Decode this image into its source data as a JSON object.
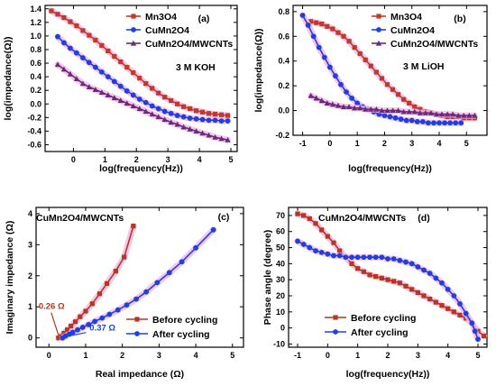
{
  "colors": {
    "mn3o4": "#c0392b",
    "cumn2o4": "#1f3fe0",
    "composite": "#6a2b7a",
    "before": "#b5371f",
    "after": "#1f3fe0",
    "halo": "#f3b8e8"
  },
  "chart_data": [
    {
      "type": "line",
      "panel": "(a)",
      "annotation": "3 M KOH",
      "xlabel": "log(frequency(Hz))",
      "ylabel": "log(impedance(Ω))",
      "xlim": [
        -0.9,
        5.2
      ],
      "ylim": [
        -0.7,
        1.45
      ],
      "xticks": [
        "0",
        "1",
        "2",
        "3",
        "4",
        "5"
      ],
      "yticks": [
        "-0.6",
        "-0.4",
        "-0.2",
        "0.0",
        "0.2",
        "0.4",
        "0.6",
        "0.8",
        "1.0",
        "1.2",
        "1.4"
      ],
      "legend": [
        "Mn3O4",
        "CuMn2O4",
        "CuMn2O4/MWCNTs"
      ],
      "series": [
        {
          "name": "Mn3O4",
          "marker": "square",
          "x": [
            -0.7,
            -0.5,
            -0.3,
            -0.1,
            0.1,
            0.3,
            0.5,
            0.7,
            0.9,
            1.1,
            1.3,
            1.5,
            1.7,
            1.9,
            2.1,
            2.3,
            2.5,
            2.7,
            2.9,
            3.1,
            3.3,
            3.5,
            3.7,
            3.9,
            4.1,
            4.3,
            4.5,
            4.7,
            4.9
          ],
          "y": [
            1.37,
            1.32,
            1.27,
            1.21,
            1.15,
            1.08,
            1.01,
            0.94,
            0.86,
            0.78,
            0.7,
            0.62,
            0.54,
            0.46,
            0.38,
            0.3,
            0.23,
            0.16,
            0.1,
            0.05,
            0.0,
            -0.04,
            -0.07,
            -0.1,
            -0.12,
            -0.14,
            -0.15,
            -0.16,
            -0.17
          ]
        },
        {
          "name": "CuMn2O4",
          "marker": "circle",
          "x": [
            -0.5,
            -0.3,
            -0.1,
            0.1,
            0.3,
            0.5,
            0.7,
            0.9,
            1.1,
            1.3,
            1.5,
            1.7,
            1.9,
            2.1,
            2.3,
            2.5,
            2.7,
            2.9,
            3.1,
            3.3,
            3.5,
            3.7,
            3.9,
            4.1,
            4.3,
            4.5,
            4.7,
            4.9
          ],
          "y": [
            0.99,
            0.9,
            0.82,
            0.75,
            0.68,
            0.61,
            0.54,
            0.47,
            0.4,
            0.33,
            0.26,
            0.19,
            0.13,
            0.07,
            0.02,
            -0.03,
            -0.07,
            -0.11,
            -0.14,
            -0.17,
            -0.19,
            -0.21,
            -0.22,
            -0.23,
            -0.24,
            -0.24,
            -0.25,
            -0.25
          ]
        },
        {
          "name": "CuMn2O4/MWCNTs",
          "marker": "triangle",
          "x": [
            -0.5,
            -0.3,
            -0.1,
            0.1,
            0.3,
            0.5,
            0.7,
            0.9,
            1.1,
            1.3,
            1.5,
            1.7,
            1.9,
            2.1,
            2.3,
            2.5,
            2.7,
            2.9,
            3.1,
            3.3,
            3.5,
            3.7,
            3.9,
            4.1,
            4.3,
            4.5,
            4.7,
            4.9
          ],
          "y": [
            0.58,
            0.51,
            0.44,
            0.37,
            0.3,
            0.25,
            0.21,
            0.17,
            0.13,
            0.09,
            0.05,
            0.01,
            -0.03,
            -0.07,
            -0.11,
            -0.15,
            -0.19,
            -0.23,
            -0.27,
            -0.3,
            -0.34,
            -0.37,
            -0.4,
            -0.43,
            -0.46,
            -0.49,
            -0.51,
            -0.53
          ]
        }
      ]
    },
    {
      "type": "line",
      "panel": "(b)",
      "annotation": "3 M LiOH",
      "xlabel": "log(frequency(Hz))",
      "ylabel": "log(impedance(Ω))",
      "xlim": [
        -1.35,
        5.75
      ],
      "ylim": [
        -0.2,
        0.85
      ],
      "xticks": [
        "-1",
        "0",
        "1",
        "2",
        "3",
        "4",
        "5"
      ],
      "yticks": [
        "-0.2",
        "0.0",
        "0.2",
        "0.4",
        "0.6",
        "0.8"
      ],
      "legend": [
        "Mn3O4",
        "CuMn2O4",
        "CuMn2O4/MWCNTs"
      ],
      "series": [
        {
          "name": "Mn3O4",
          "marker": "square",
          "x": [
            -0.7,
            -0.5,
            -0.3,
            -0.1,
            0.1,
            0.3,
            0.5,
            0.7,
            0.9,
            1.1,
            1.3,
            1.5,
            1.7,
            1.9,
            2.1,
            2.3,
            2.5,
            2.7,
            2.9,
            3.1,
            3.3,
            3.5,
            3.7,
            3.9,
            4.1,
            4.3,
            4.5,
            4.7,
            4.9,
            5.1,
            5.3
          ],
          "y": [
            0.72,
            0.71,
            0.7,
            0.68,
            0.66,
            0.63,
            0.6,
            0.56,
            0.51,
            0.46,
            0.41,
            0.36,
            0.31,
            0.26,
            0.21,
            0.17,
            0.13,
            0.09,
            0.06,
            0.03,
            0.01,
            -0.01,
            -0.02,
            -0.03,
            -0.04,
            -0.05,
            -0.05,
            -0.05,
            -0.06,
            -0.06,
            -0.06
          ]
        },
        {
          "name": "CuMn2O4",
          "marker": "circle",
          "x": [
            -1.0,
            -0.8,
            -0.6,
            -0.4,
            -0.2,
            0.0,
            0.2,
            0.4,
            0.6,
            0.8,
            1.0,
            1.2,
            1.4,
            1.6,
            1.8,
            2.0,
            2.2,
            2.4,
            2.6,
            2.8,
            3.0,
            3.2,
            3.4,
            3.6,
            3.8,
            4.0,
            4.2,
            4.4,
            4.6,
            4.8
          ],
          "y": [
            0.77,
            0.69,
            0.6,
            0.51,
            0.43,
            0.35,
            0.28,
            0.21,
            0.15,
            0.1,
            0.06,
            0.03,
            0.01,
            -0.01,
            -0.03,
            -0.04,
            -0.05,
            -0.06,
            -0.07,
            -0.08,
            -0.08,
            -0.09,
            -0.09,
            -0.1,
            -0.1,
            -0.1,
            -0.1,
            -0.1,
            -0.1,
            -0.1
          ]
        },
        {
          "name": "CuMn2O4/MWCNTs",
          "marker": "triangle",
          "x": [
            -0.7,
            -0.5,
            -0.3,
            -0.1,
            0.1,
            0.3,
            0.5,
            0.7,
            0.9,
            1.1,
            1.3,
            1.5,
            1.7,
            1.9,
            2.1,
            2.3,
            2.5,
            2.7,
            2.9,
            3.1,
            3.3,
            3.5,
            3.7,
            3.9,
            4.1,
            4.3,
            4.5,
            4.7,
            4.9,
            5.1,
            5.3
          ],
          "y": [
            0.12,
            0.1,
            0.08,
            0.06,
            0.05,
            0.04,
            0.03,
            0.03,
            0.02,
            0.02,
            0.01,
            0.01,
            0.01,
            0.0,
            0.0,
            0.0,
            0.0,
            -0.01,
            -0.01,
            -0.01,
            -0.02,
            -0.02,
            -0.02,
            -0.03,
            -0.03,
            -0.03,
            -0.03,
            -0.04,
            -0.04,
            -0.04,
            -0.04
          ]
        }
      ]
    },
    {
      "type": "line",
      "panel": "(c)",
      "annotation": "CuMn2O4/MWCNTs",
      "xlabel": "Real impedance (Ω)",
      "ylabel": "Imaginary impedance (Ω)",
      "xlim": [
        -0.35,
        5.3
      ],
      "ylim": [
        -0.3,
        4.2
      ],
      "xticks": [
        "0",
        "1",
        "2",
        "3",
        "4",
        "5"
      ],
      "yticks": [
        "0",
        "1",
        "2",
        "3",
        "4"
      ],
      "legend": [
        "Before cycling",
        "After cycling"
      ],
      "labels": [
        {
          "text": "0.26 Ω",
          "x": 0.26
        },
        {
          "text": "0.37 Ω",
          "x": 0.37
        }
      ],
      "series": [
        {
          "name": "Before cycling",
          "marker": "square",
          "x": [
            0.26,
            0.33,
            0.41,
            0.5,
            0.6,
            0.72,
            0.85,
            1.0,
            1.18,
            1.38,
            1.58,
            1.82,
            2.05,
            2.3
          ],
          "y": [
            0.0,
            0.05,
            0.15,
            0.26,
            0.38,
            0.52,
            0.68,
            0.86,
            1.1,
            1.42,
            1.75,
            2.15,
            2.6,
            3.6
          ]
        },
        {
          "name": "After cycling",
          "marker": "circle",
          "x": [
            0.37,
            0.45,
            0.55,
            0.65,
            0.78,
            0.92,
            1.08,
            1.25,
            1.45,
            1.65,
            1.88,
            2.12,
            2.38,
            2.65,
            2.95,
            3.28,
            3.62,
            4.0,
            4.48
          ],
          "y": [
            0.0,
            0.06,
            0.12,
            0.18,
            0.26,
            0.34,
            0.43,
            0.53,
            0.64,
            0.76,
            0.9,
            1.06,
            1.25,
            1.48,
            1.78,
            2.1,
            2.45,
            2.9,
            3.48
          ]
        }
      ]
    },
    {
      "type": "line",
      "panel": "(d)",
      "annotation": "CuMn2O4/MWCNTs",
      "xlabel": "log(frequency(Hz))",
      "ylabel": "Phase angle (degree)",
      "xlim": [
        -1.3,
        5.3
      ],
      "ylim": [
        -12,
        75
      ],
      "xticks": [
        "-1",
        "0",
        "1",
        "2",
        "3",
        "4",
        "5"
      ],
      "yticks": [
        "-10",
        "0",
        "10",
        "20",
        "30",
        "40",
        "50",
        "60",
        "70"
      ],
      "legend": [
        "Before cycling",
        "After cycling"
      ],
      "series": [
        {
          "name": "Before cycling",
          "marker": "square",
          "x": [
            -1.0,
            -0.8,
            -0.6,
            -0.4,
            -0.2,
            0.0,
            0.2,
            0.4,
            0.6,
            0.8,
            1.0,
            1.2,
            1.4,
            1.6,
            1.8,
            2.0,
            2.2,
            2.4,
            2.6,
            2.8,
            3.0,
            3.2,
            3.4,
            3.6,
            3.8,
            4.0,
            4.2,
            4.4,
            4.6,
            4.8,
            5.0,
            5.2
          ],
          "y": [
            71,
            70,
            68,
            65,
            61,
            57,
            53,
            48,
            44,
            40,
            37,
            35,
            33,
            32,
            31,
            30,
            29,
            28,
            26,
            24,
            22,
            20,
            18,
            16,
            14,
            12,
            10,
            8,
            6,
            3,
            -2,
            -5
          ]
        },
        {
          "name": "After cycling",
          "marker": "circle",
          "x": [
            -1.0,
            -0.8,
            -0.6,
            -0.4,
            -0.2,
            0.0,
            0.2,
            0.4,
            0.6,
            0.8,
            1.0,
            1.2,
            1.4,
            1.6,
            1.8,
            2.0,
            2.2,
            2.4,
            2.6,
            2.8,
            3.0,
            3.2,
            3.4,
            3.6,
            3.8,
            4.0,
            4.2,
            4.4,
            4.6,
            4.8,
            4.9,
            5.0
          ],
          "y": [
            54,
            52,
            50,
            48,
            47,
            46,
            45,
            45,
            44,
            44,
            44,
            44,
            44,
            44,
            44,
            43,
            43,
            42,
            41,
            40,
            38,
            36,
            34,
            31,
            28,
            24,
            20,
            15,
            9,
            3,
            -2,
            -7
          ]
        }
      ]
    }
  ]
}
